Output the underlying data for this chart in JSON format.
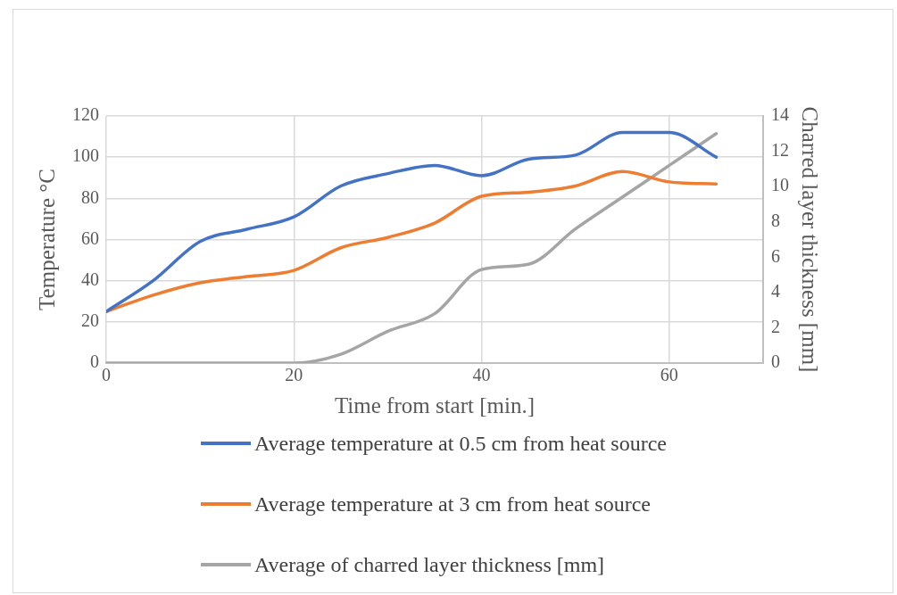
{
  "chart_data": {
    "type": "line",
    "xlabel": "Time from start [min.]",
    "ylabel": "Temperature °C",
    "y2label": "Charred layer thickness [mm]",
    "x": [
      0,
      5,
      10,
      15,
      20,
      25,
      30,
      35,
      40,
      45,
      50,
      55,
      60,
      65
    ],
    "series": [
      {
        "name": "Average temperature at 0.5 cm from heat source",
        "color": "#4472c4",
        "values": [
          25,
          40,
          59,
          65,
          71,
          86,
          92,
          96,
          91,
          99,
          101,
          112,
          112,
          100
        ]
      },
      {
        "name": "Average temperature at 3 cm from heat source",
        "color": "#ed7d31",
        "values": [
          25,
          33,
          39,
          42,
          45,
          56,
          61,
          68,
          81,
          83,
          86,
          93,
          88,
          87
        ]
      },
      {
        "name": "Average of charred layer thickness [mm]",
        "color": "#a5a5a5",
        "axis": "y2",
        "values": [
          0,
          0,
          0,
          0,
          0,
          0.5,
          1.8,
          2.8,
          5.3,
          5.6,
          7.6,
          9.4,
          11.2,
          13
        ]
      }
    ],
    "xlim": [
      0,
      70
    ],
    "xticks": [
      0,
      20,
      40,
      60
    ],
    "ylim": [
      0,
      120
    ],
    "yticks": [
      0,
      20,
      40,
      60,
      80,
      100,
      120
    ],
    "y2lim": [
      0,
      14
    ],
    "y2ticks": [
      0,
      2,
      4,
      6,
      8,
      10,
      12,
      14
    ],
    "grid": true,
    "legend": "bottom",
    "marker": "none",
    "line_style": "solid"
  }
}
